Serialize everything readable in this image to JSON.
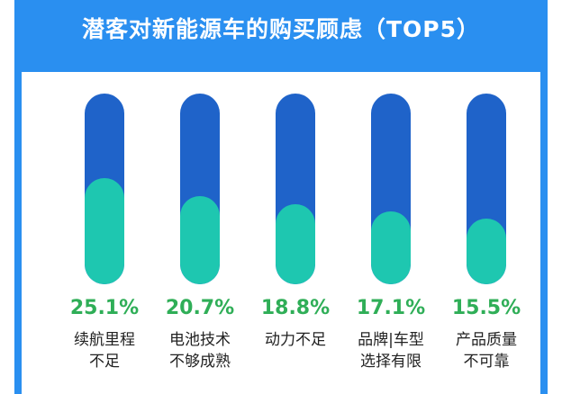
{
  "chart_data": {
    "type": "bar",
    "title": "潜客对新能源车的购买顾虑（TOP5）",
    "categories": [
      [
        "续航里程",
        "不足"
      ],
      [
        "电池技术",
        "不够成熟"
      ],
      [
        "动力不足"
      ],
      [
        "品牌|车型",
        "选择有限"
      ],
      [
        "产品质量",
        "不可靠"
      ]
    ],
    "values": [
      25.1,
      20.7,
      18.8,
      17.1,
      15.5
    ],
    "value_labels": [
      "25.1%",
      "20.7%",
      "18.8%",
      "17.1%",
      "15.5%"
    ],
    "ylim": [
      0,
      45
    ],
    "colors": {
      "track": "#1f63c9",
      "fill": "#1ec7b0",
      "value_text": "#2fae57",
      "frame": "#2a8ff0"
    }
  }
}
